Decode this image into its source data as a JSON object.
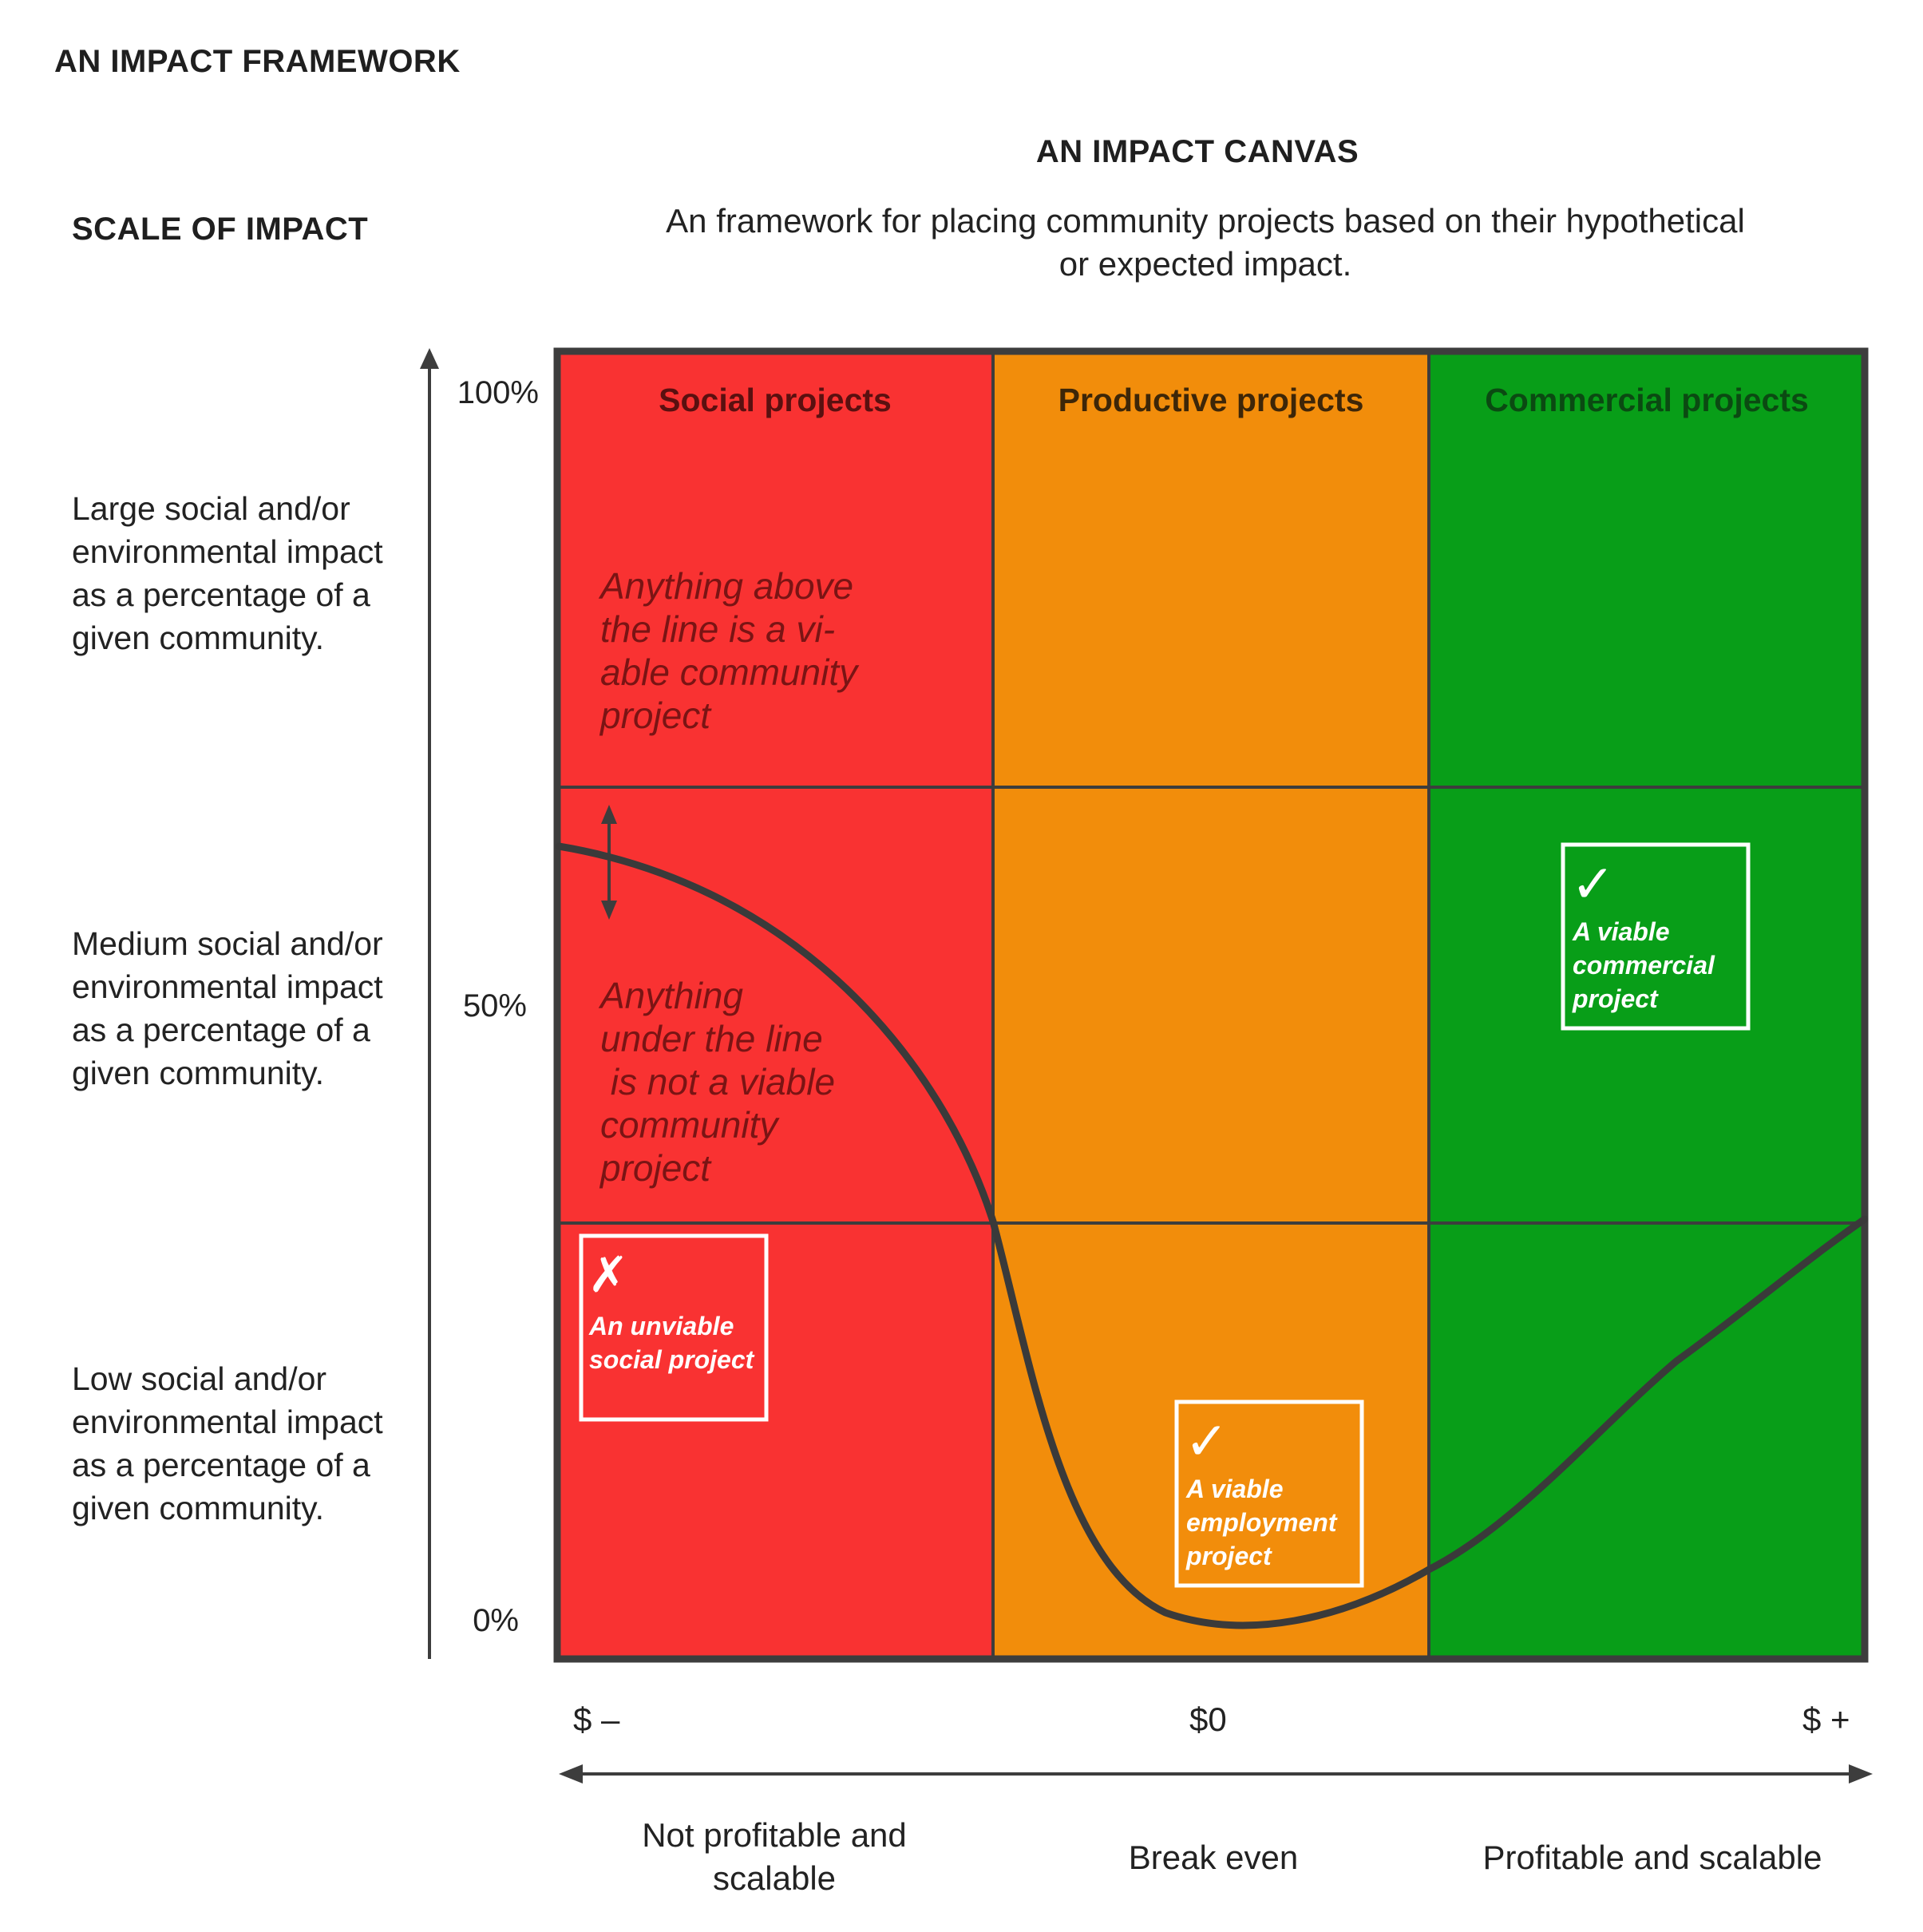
{
  "page_title": "AN IMPACT FRAMEWORK",
  "scale_heading": "SCALE OF IMPACT",
  "canvas": {
    "title": "AN IMPACT CANVAS",
    "subtitle_line1": "An framework for placing community projects based on their hypothetical",
    "subtitle_line2": "or expected impact."
  },
  "y_axis": {
    "levels": [
      {
        "lines": [
          "Large social and/or",
          "environmental impact",
          "as a percentage of a",
          "given community."
        ]
      },
      {
        "lines": [
          "Medium social and/or",
          "environmental impact",
          "as a percentage of a",
          "given community."
        ]
      },
      {
        "lines": [
          "Low social and/or",
          "environmental impact",
          "as a percentage of a",
          "given community."
        ]
      }
    ],
    "ticks": [
      "100%",
      "50%",
      "0%"
    ]
  },
  "x_axis": {
    "ticks": [
      "$ –",
      "$0",
      "$ +"
    ],
    "descriptions": [
      {
        "lines": [
          "Not profitable and",
          "scalable"
        ]
      },
      {
        "lines": [
          "Break even"
        ]
      },
      {
        "lines": [
          "Profitable and scalable"
        ]
      }
    ]
  },
  "columns": [
    {
      "label": "Social projects",
      "color": "#f93232"
    },
    {
      "label": "Productive projects",
      "color": "#f28d0b"
    },
    {
      "label": "Commercial projects",
      "color": "#089e18"
    }
  ],
  "annotations": {
    "above": [
      "Anything above",
      "the line is a vi-",
      "able community",
      "project"
    ],
    "below": [
      "Anything",
      "under the line",
      " is not a viable",
      "community",
      "project"
    ]
  },
  "cards": [
    {
      "mark": "✗",
      "lines": [
        "An unviable",
        "social project"
      ]
    },
    {
      "mark": "✓",
      "lines": [
        "A viable",
        "employment",
        "project"
      ]
    },
    {
      "mark": "✓",
      "lines": [
        "A viable",
        "commercial",
        "project"
      ]
    }
  ],
  "colors": {
    "grid_line": "#3d3d3d",
    "curve": "#3a3a3a",
    "card_border": "#ffffff",
    "red": "#f93232",
    "orange": "#f28d0b",
    "green": "#089e18"
  }
}
